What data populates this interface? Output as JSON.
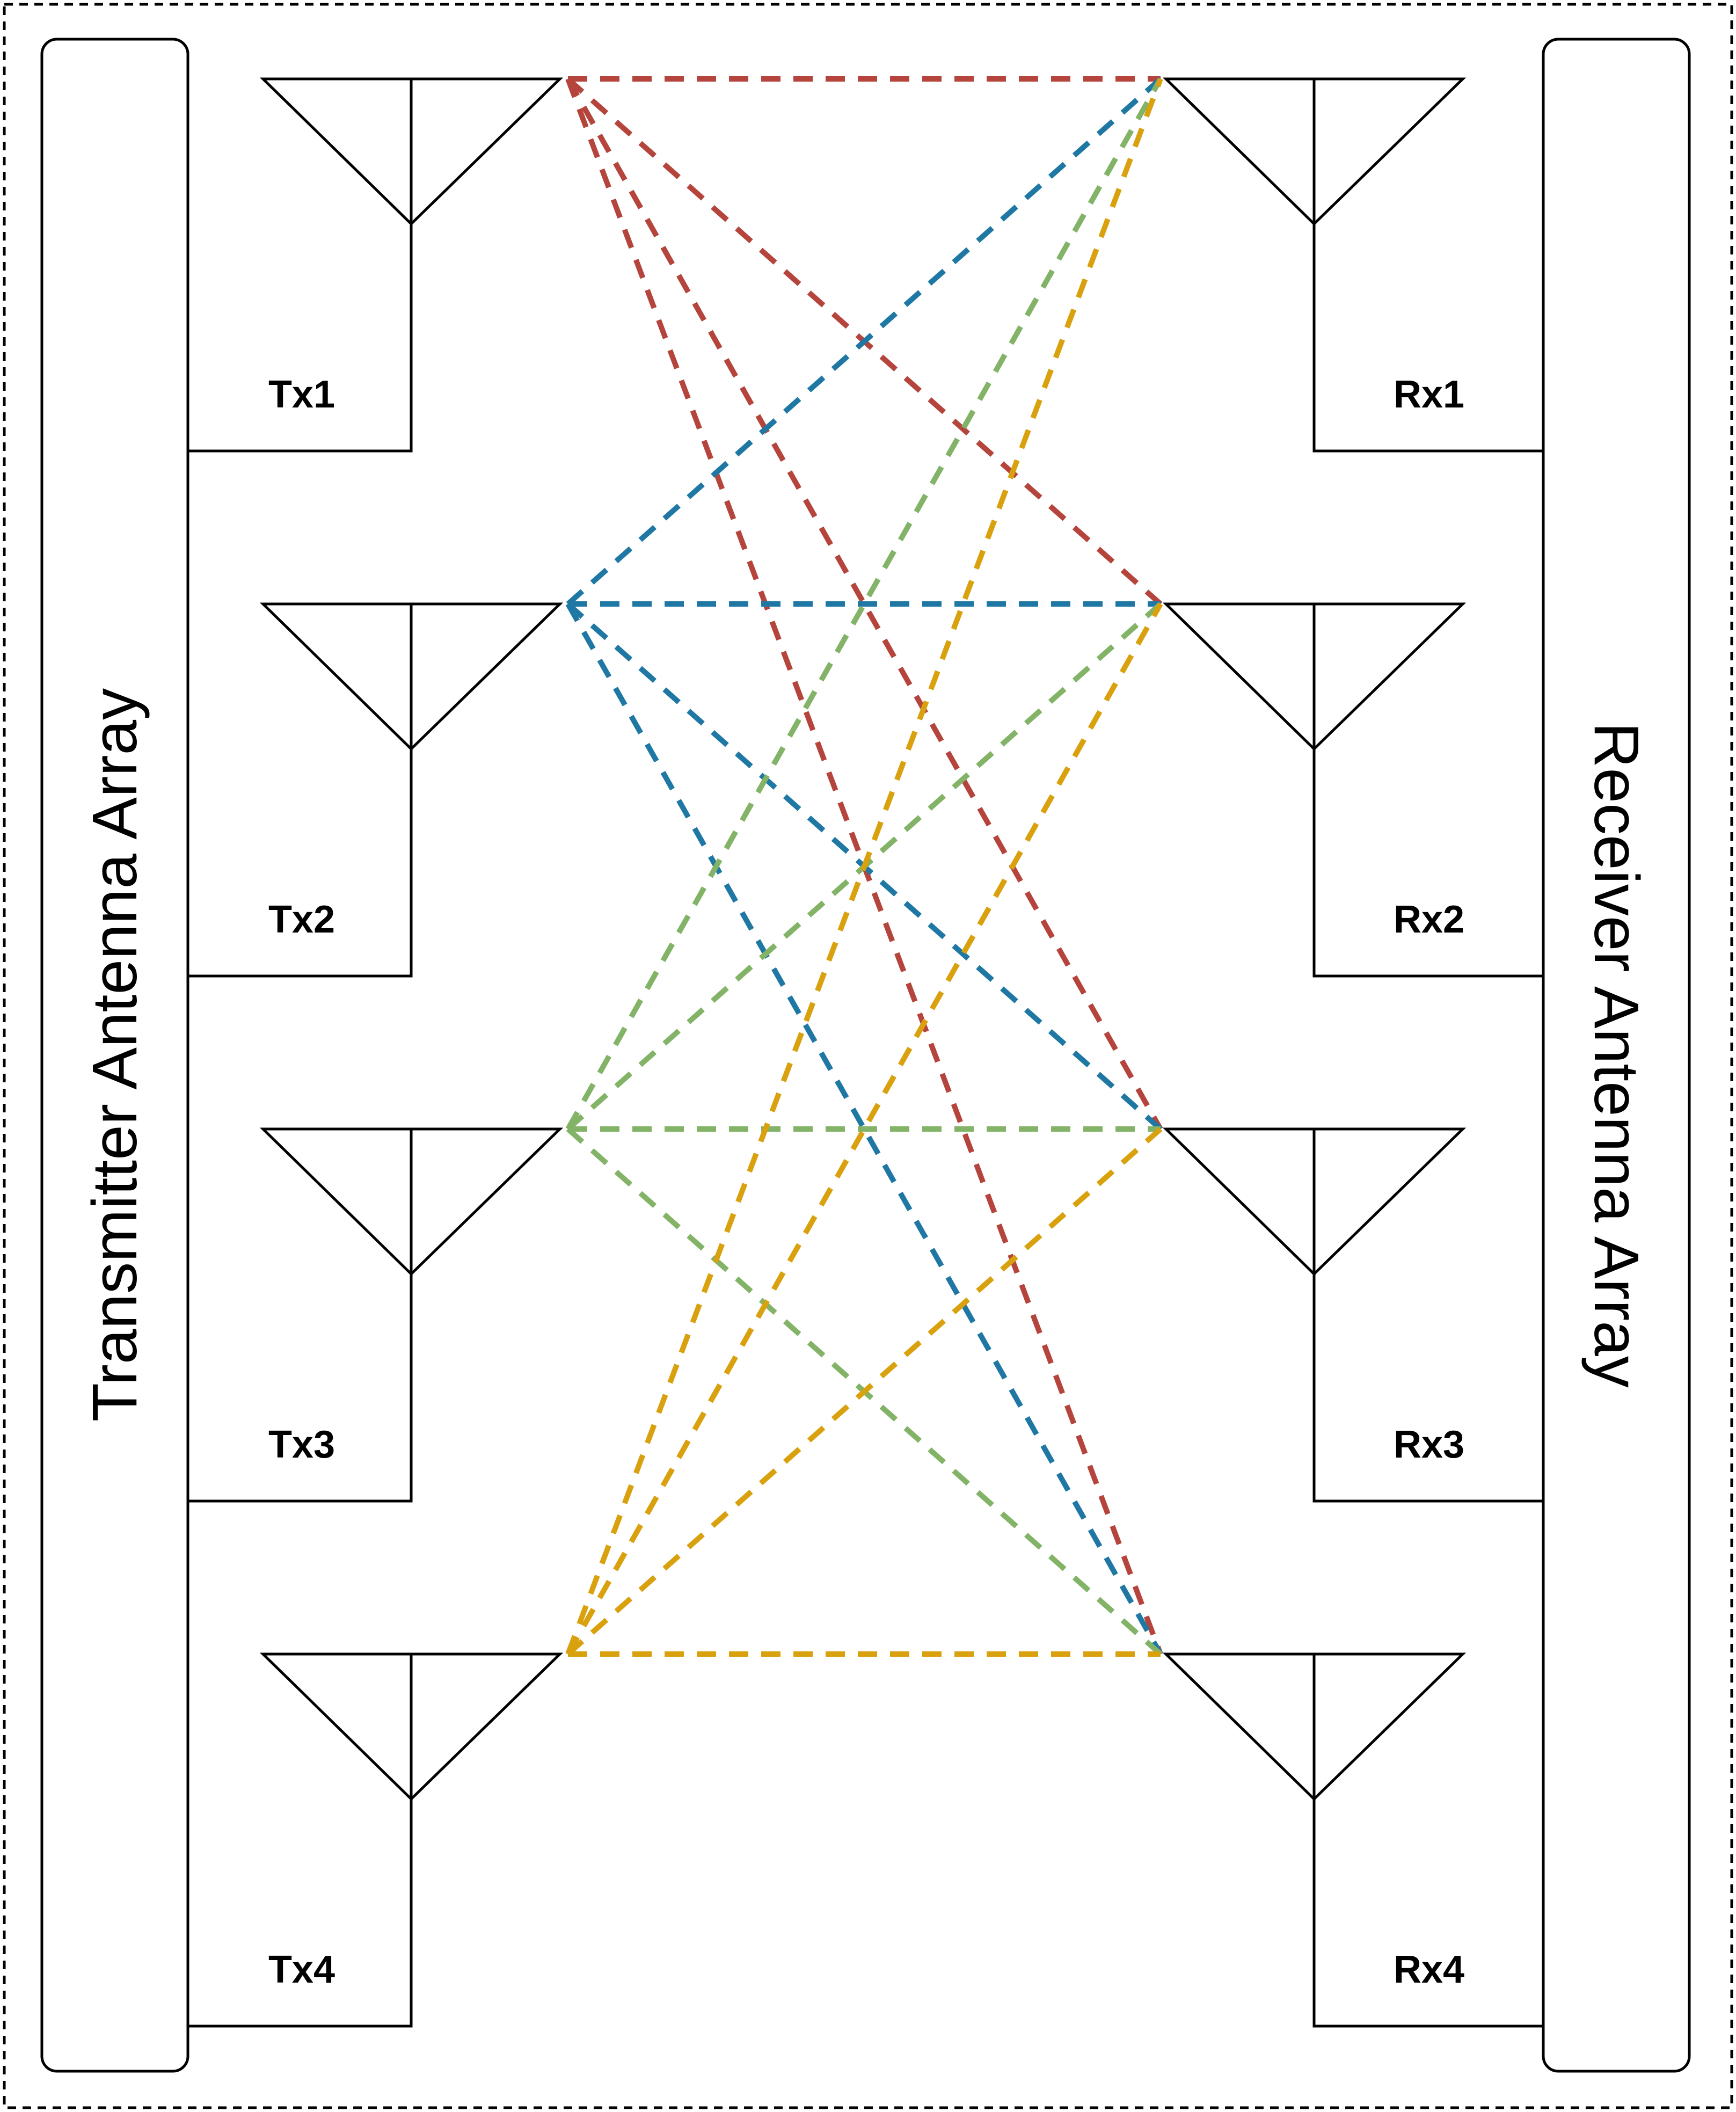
{
  "transmitter": {
    "title": "Transmitter Antenna Array",
    "antennas": [
      "Tx1",
      "Tx2",
      "Tx3",
      "Tx4"
    ]
  },
  "receiver": {
    "title": "Receiver Antenna Array",
    "antennas": [
      "Rx1",
      "Rx2",
      "Rx3",
      "Rx4"
    ]
  },
  "links": {
    "colors_by_tx": [
      "#b5443c",
      "#1f78a4",
      "#82b366",
      "#d9a10e"
    ]
  }
}
